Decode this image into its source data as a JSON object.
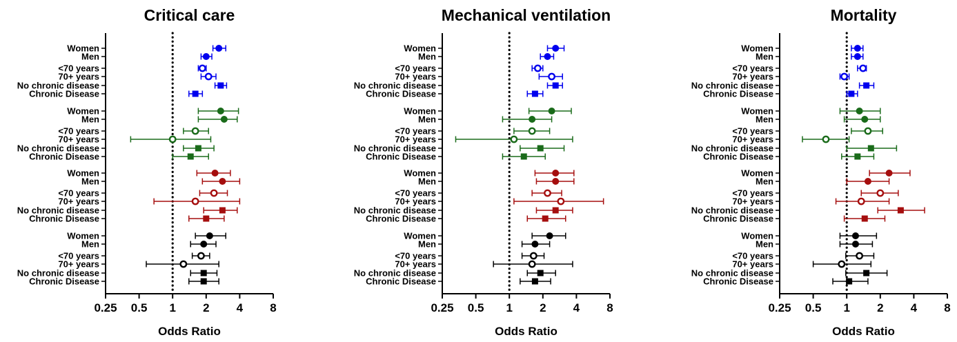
{
  "chart_data": {
    "type": "forest",
    "x_scale": "log2",
    "xlim": [
      0.25,
      8
    ],
    "x_ticks": [
      "0.25",
      "0.5",
      "1",
      "2",
      "4",
      "8"
    ],
    "x_tick_values": [
      0.25,
      0.5,
      1,
      2,
      4,
      8
    ],
    "reference_line": 1,
    "xlabel": "Odds Ratio",
    "row_labels": [
      "Women",
      "Men",
      "<70 years",
      "70+ years",
      "No chronic disease",
      "Chronic Disease"
    ],
    "group_colors": [
      "#0000ee",
      "#1a6b1a",
      "#a50e0e",
      "#000000"
    ],
    "row_markers": [
      "circle",
      "circle",
      "ring",
      "ring",
      "square",
      "square"
    ],
    "panels": [
      {
        "title": "Critical care",
        "groups": [
          [
            [
              2.6,
              2.3,
              3.0
            ],
            [
              2.0,
              1.8,
              2.25
            ],
            [
              1.85,
              1.7,
              2.0
            ],
            [
              2.1,
              1.8,
              2.45
            ],
            [
              2.7,
              2.4,
              3.05
            ],
            [
              1.6,
              1.4,
              1.85
            ]
          ],
          [
            [
              2.7,
              1.7,
              3.9
            ],
            [
              2.9,
              1.7,
              3.8
            ],
            [
              1.6,
              1.25,
              2.1
            ],
            [
              1.0,
              0.42,
              2.2
            ],
            [
              1.7,
              1.25,
              2.35
            ],
            [
              1.45,
              1.0,
              2.1
            ]
          ],
          [
            [
              2.4,
              1.65,
              3.3
            ],
            [
              2.8,
              1.85,
              4.0
            ],
            [
              2.35,
              1.75,
              3.1
            ],
            [
              1.6,
              0.68,
              4.0
            ],
            [
              2.8,
              1.9,
              3.8
            ],
            [
              2.0,
              1.4,
              2.9
            ]
          ],
          [
            [
              2.15,
              1.6,
              3.0
            ],
            [
              1.9,
              1.45,
              2.45
            ],
            [
              1.8,
              1.5,
              2.15
            ],
            [
              1.25,
              0.58,
              2.6
            ],
            [
              1.9,
              1.45,
              2.5
            ],
            [
              1.9,
              1.4,
              2.6
            ]
          ]
        ]
      },
      {
        "title": "Mechanical ventilation",
        "groups": [
          [
            [
              2.6,
              2.2,
              3.1
            ],
            [
              2.2,
              1.9,
              2.5
            ],
            [
              1.8,
              1.6,
              2.0
            ],
            [
              2.4,
              1.85,
              3.0
            ],
            [
              2.6,
              2.2,
              3.0
            ],
            [
              1.7,
              1.45,
              2.0
            ]
          ],
          [
            [
              2.4,
              1.5,
              3.6
            ],
            [
              1.6,
              0.87,
              2.4
            ],
            [
              1.6,
              1.1,
              2.3
            ],
            [
              1.1,
              0.33,
              3.7
            ],
            [
              1.9,
              1.25,
              3.1
            ],
            [
              1.35,
              0.87,
              2.1
            ]
          ],
          [
            [
              2.6,
              1.7,
              3.8
            ],
            [
              2.6,
              1.75,
              3.8
            ],
            [
              2.2,
              1.6,
              2.95
            ],
            [
              2.9,
              1.1,
              7.0
            ],
            [
              2.6,
              1.75,
              3.7
            ],
            [
              2.1,
              1.45,
              3.2
            ]
          ],
          [
            [
              2.3,
              1.6,
              3.2
            ],
            [
              1.7,
              1.3,
              2.3
            ],
            [
              1.65,
              1.3,
              2.05
            ],
            [
              1.6,
              0.72,
              3.7
            ],
            [
              1.9,
              1.45,
              2.6
            ],
            [
              1.7,
              1.25,
              2.35
            ]
          ]
        ]
      },
      {
        "title": "Mortality",
        "groups": [
          [
            [
              1.25,
              1.1,
              1.4
            ],
            [
              1.25,
              1.1,
              1.4
            ],
            [
              1.4,
              1.25,
              1.5
            ],
            [
              0.95,
              0.87,
              1.05
            ],
            [
              1.5,
              1.3,
              1.75
            ],
            [
              1.1,
              1.0,
              1.25
            ]
          ],
          [
            [
              1.3,
              0.87,
              2.0
            ],
            [
              1.45,
              0.95,
              2.0
            ],
            [
              1.55,
              1.1,
              2.1
            ],
            [
              0.65,
              0.4,
              1.05
            ],
            [
              1.65,
              1.0,
              2.8
            ],
            [
              1.25,
              0.9,
              1.75
            ]
          ],
          [
            [
              2.4,
              1.6,
              3.7
            ],
            [
              1.55,
              1.0,
              2.4
            ],
            [
              2.0,
              1.35,
              2.9
            ],
            [
              1.35,
              0.8,
              2.4
            ],
            [
              3.05,
              1.9,
              5.0
            ],
            [
              1.45,
              0.95,
              2.2
            ]
          ],
          [
            [
              1.2,
              0.87,
              1.85
            ],
            [
              1.2,
              0.87,
              1.7
            ],
            [
              1.3,
              0.98,
              1.75
            ],
            [
              0.9,
              0.5,
              1.65
            ],
            [
              1.5,
              0.98,
              2.3
            ],
            [
              1.05,
              0.75,
              1.55
            ]
          ]
        ]
      }
    ]
  }
}
